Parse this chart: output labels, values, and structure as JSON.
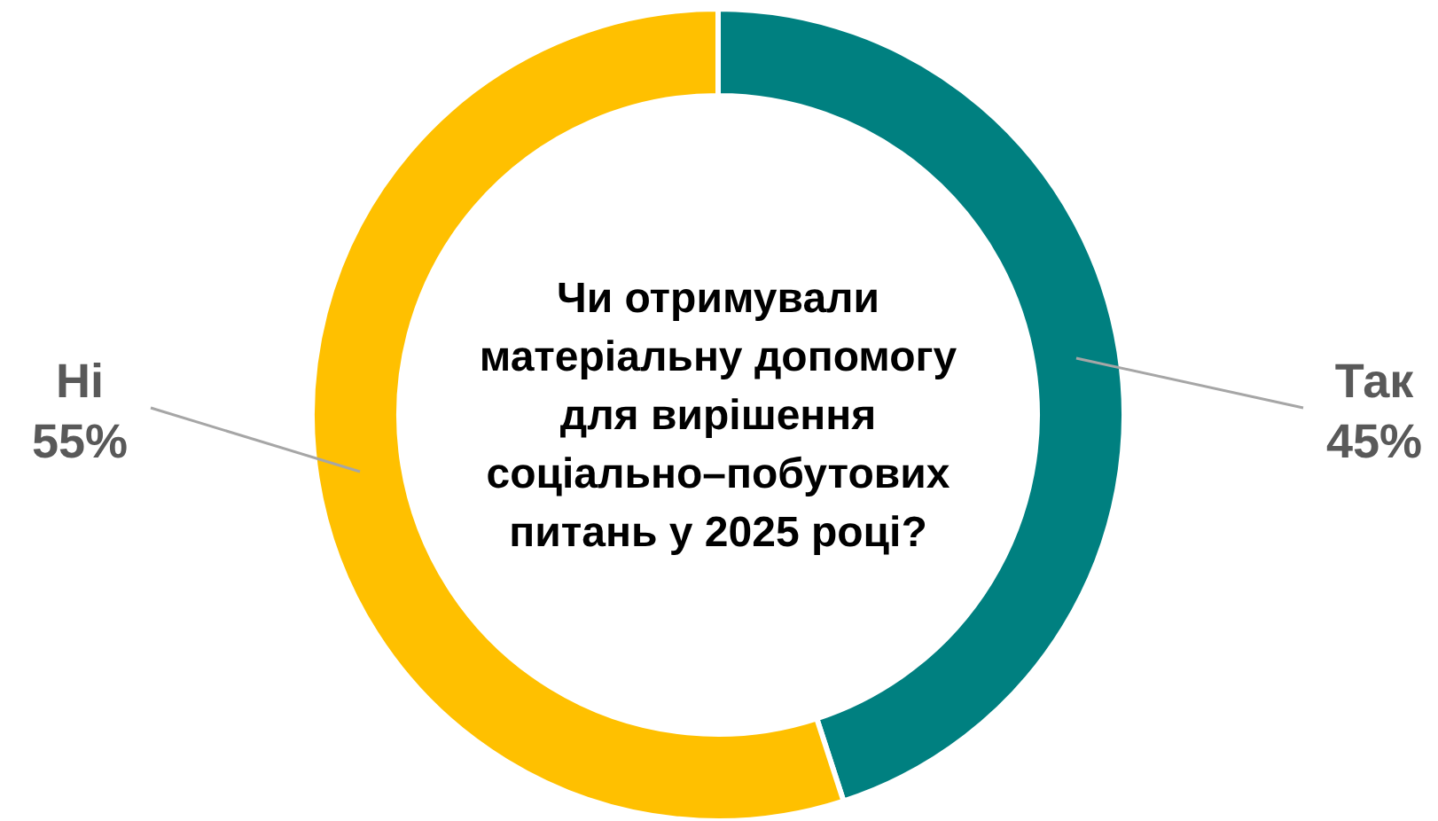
{
  "chart_data": {
    "type": "donut",
    "title": "Чи отримували матеріальну допомогу для вирішення соціально–побутових питань у 2025 році?",
    "categories": [
      "Так",
      "Ні"
    ],
    "values": [
      45,
      55
    ],
    "colors": [
      "#008080",
      "#ffc000"
    ],
    "value_labels": [
      "45%",
      "55%"
    ]
  }
}
